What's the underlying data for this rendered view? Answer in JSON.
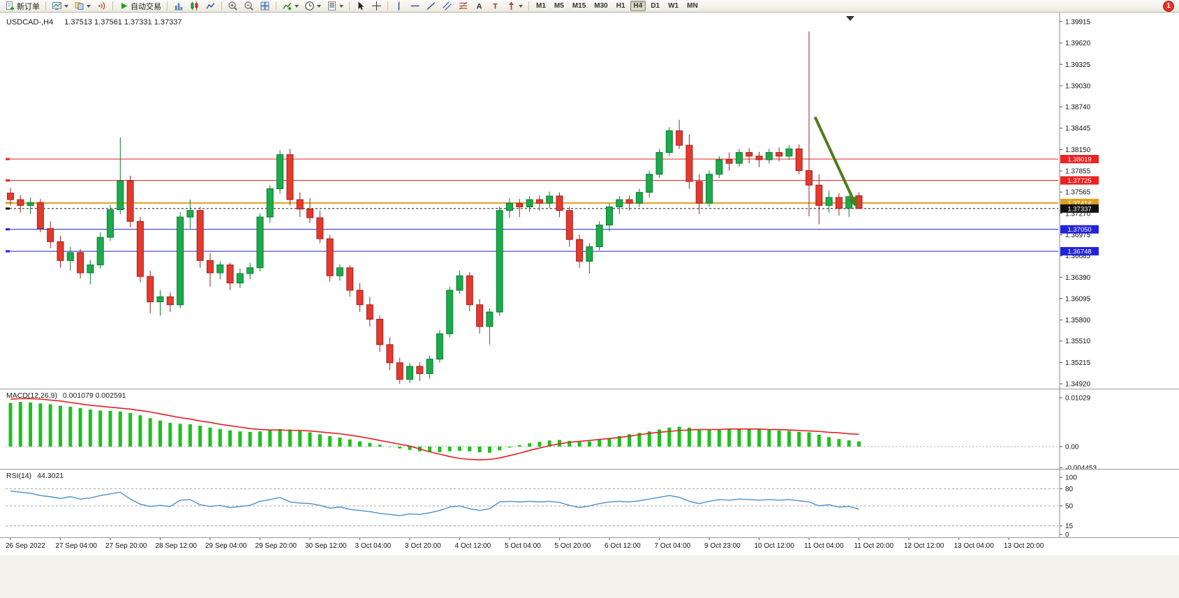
{
  "app": {
    "badge_count": "1"
  },
  "colors": {
    "bull": "#1cab4b",
    "bull_edge": "#0c7a33",
    "bear": "#e23b2e",
    "bear_edge": "#a31f1f",
    "macd_hist": "#1fc01f",
    "macd_signal": "#e02020",
    "rsi_line": "#4d8fd1",
    "arrow": "#4e7d1e",
    "resistance": "#ee2222",
    "pivot": "#e0a020",
    "support": "#2222dd",
    "current": "#111111"
  },
  "toolbar": {
    "groups": [
      {
        "items": [
          {
            "name": "new-order-button",
            "icon": "new-order-icon",
            "label": "新订单",
            "caret": false
          }
        ]
      },
      {
        "items": [
          {
            "name": "charts-button",
            "icon": "charts-icon",
            "caret": true
          },
          {
            "name": "profiles-button",
            "icon": "profiles-icon",
            "caret": true
          },
          {
            "name": "signals-button",
            "icon": "signals-icon",
            "caret": false
          }
        ]
      },
      {
        "items": [
          {
            "name": "autotrading-button",
            "icon": "play-icon",
            "label": "自动交易",
            "caret": false
          }
        ]
      },
      {
        "items": [
          {
            "name": "bar-chart-button",
            "icon": "bar-chart-icon"
          },
          {
            "name": "candlestick-button",
            "icon": "candlestick-icon"
          },
          {
            "name": "line-chart-button",
            "icon": "line-chart-icon"
          }
        ]
      },
      {
        "items": [
          {
            "name": "zoom-in-button",
            "icon": "zoom-in-icon"
          },
          {
            "name": "zoom-out-button",
            "icon": "zoom-out-icon"
          },
          {
            "name": "tile-windows-button",
            "icon": "tile-windows-icon"
          }
        ]
      },
      {
        "items": [
          {
            "name": "indicators-button",
            "icon": "indicators-icon",
            "caret": true
          },
          {
            "name": "periods-button",
            "icon": "periods-icon",
            "caret": true
          },
          {
            "name": "templates-button",
            "icon": "templates-icon",
            "caret": true
          }
        ]
      },
      {
        "items": [
          {
            "name": "cursor-button",
            "icon": "cursor-icon"
          },
          {
            "name": "crosshair-button",
            "icon": "crosshair-icon"
          }
        ]
      },
      {
        "items": [
          {
            "name": "vline-button",
            "icon": "vline-icon"
          },
          {
            "name": "hline-button",
            "icon": "hline-icon"
          },
          {
            "name": "trendline-button",
            "icon": "trendline-icon"
          },
          {
            "name": "channel-button",
            "icon": "channel-icon"
          },
          {
            "name": "fibonacci-button",
            "icon": "fibonacci-icon"
          },
          {
            "name": "text-button",
            "icon": "text-icon"
          },
          {
            "name": "label-button",
            "icon": "label-icon"
          },
          {
            "name": "arrows-button",
            "icon": "arrows-icon",
            "caret": true
          }
        ]
      }
    ],
    "timeframes": [
      {
        "name": "tf-m1",
        "label": "M1"
      },
      {
        "name": "tf-m5",
        "label": "M5"
      },
      {
        "name": "tf-m15",
        "label": "M15"
      },
      {
        "name": "tf-m30",
        "label": "M30"
      },
      {
        "name": "tf-h1",
        "label": "H1"
      },
      {
        "name": "tf-h4",
        "label": "H4",
        "active": true
      },
      {
        "name": "tf-d1",
        "label": "D1"
      },
      {
        "name": "tf-w1",
        "label": "W1"
      },
      {
        "name": "tf-mn",
        "label": "MN"
      }
    ]
  },
  "chart_data": [
    {
      "type": "candlestick",
      "title": "USDCAD-,H4",
      "ohlc_display": "1.37513 1.37561 1.37331 1.37337",
      "timeframe": "H4",
      "ylim": [
        1.3492,
        1.39915
      ],
      "y_axis_labels": [
        "1.39915",
        "1.39620",
        "1.39325",
        "1.39030",
        "1.38740",
        "1.38445",
        "1.38150",
        "1.37855",
        "1.37565",
        "1.37270",
        "1.36975",
        "1.36685",
        "1.36390",
        "1.36095",
        "1.35800",
        "1.35510",
        "1.35215",
        "1.34920"
      ],
      "x_labels": [
        "26 Sep 2022",
        "27 Sep 04:00",
        "27 Sep 20:00",
        "28 Sep 12:00",
        "29 Sep 04:00",
        "29 Sep 20:00",
        "30 Sep 12:00",
        "3 Oct 04:00",
        "3 Oct 20:00",
        "4 Oct 12:00",
        "5 Oct 04:00",
        "5 Oct 20:00",
        "6 Oct 12:00",
        "7 Oct 04:00",
        "9 Oct 23:00",
        "10 Oct 12:00",
        "11 Oct 04:00",
        "11 Oct 20:00",
        "12 Oct 12:00",
        "13 Oct 04:00",
        "13 Oct 20:00"
      ],
      "bars_per_label": 5,
      "ohlc": [
        [
          1.3755,
          1.3762,
          1.3738,
          1.3746
        ],
        [
          1.3746,
          1.3752,
          1.3728,
          1.3738
        ],
        [
          1.3738,
          1.3749,
          1.3726,
          1.3742
        ],
        [
          1.3742,
          1.3747,
          1.3701,
          1.3706
        ],
        [
          1.3706,
          1.3716,
          1.3679,
          1.3688
        ],
        [
          1.3688,
          1.3696,
          1.3652,
          1.3662
        ],
        [
          1.3662,
          1.3681,
          1.3648,
          1.3673
        ],
        [
          1.3673,
          1.3678,
          1.3637,
          1.3645
        ],
        [
          1.3645,
          1.3663,
          1.3629,
          1.3656
        ],
        [
          1.3656,
          1.3701,
          1.3651,
          1.3694
        ],
        [
          1.3694,
          1.3739,
          1.3689,
          1.3732
        ],
        [
          1.3732,
          1.3832,
          1.3726,
          1.3772
        ],
        [
          1.3772,
          1.3779,
          1.3708,
          1.3716
        ],
        [
          1.3716,
          1.3722,
          1.3632,
          1.364
        ],
        [
          1.364,
          1.3648,
          1.3589,
          1.3605
        ],
        [
          1.3605,
          1.3621,
          1.3586,
          1.3612
        ],
        [
          1.3612,
          1.3618,
          1.3591,
          1.3601
        ],
        [
          1.3601,
          1.3729,
          1.3596,
          1.3722
        ],
        [
          1.3722,
          1.3746,
          1.3706,
          1.3731
        ],
        [
          1.3731,
          1.3736,
          1.3652,
          1.3662
        ],
        [
          1.3662,
          1.3672,
          1.3626,
          1.3645
        ],
        [
          1.3645,
          1.3661,
          1.3636,
          1.3656
        ],
        [
          1.3656,
          1.3659,
          1.3621,
          1.3631
        ],
        [
          1.3631,
          1.3651,
          1.3624,
          1.3644
        ],
        [
          1.3644,
          1.3659,
          1.3636,
          1.3652
        ],
        [
          1.3652,
          1.3727,
          1.3647,
          1.3722
        ],
        [
          1.3722,
          1.3766,
          1.3714,
          1.3761
        ],
        [
          1.3761,
          1.3814,
          1.3754,
          1.3808
        ],
        [
          1.3808,
          1.3816,
          1.3738,
          1.3746
        ],
        [
          1.3746,
          1.3756,
          1.3722,
          1.3733
        ],
        [
          1.3733,
          1.3748,
          1.3714,
          1.3721
        ],
        [
          1.3721,
          1.3731,
          1.3686,
          1.3692
        ],
        [
          1.3692,
          1.3697,
          1.3633,
          1.3641
        ],
        [
          1.3641,
          1.3657,
          1.3634,
          1.3652
        ],
        [
          1.3652,
          1.3656,
          1.3612,
          1.3621
        ],
        [
          1.3621,
          1.3631,
          1.3591,
          1.3601
        ],
        [
          1.3601,
          1.3612,
          1.3571,
          1.3581
        ],
        [
          1.3581,
          1.3586,
          1.3536,
          1.3546
        ],
        [
          1.3546,
          1.3556,
          1.3511,
          1.3521
        ],
        [
          1.3521,
          1.3528,
          1.3492,
          1.3498
        ],
        [
          1.3498,
          1.3521,
          1.3493,
          1.3516
        ],
        [
          1.3516,
          1.3522,
          1.3496,
          1.3506
        ],
        [
          1.3506,
          1.3531,
          1.3499,
          1.3526
        ],
        [
          1.3526,
          1.3566,
          1.3521,
          1.3561
        ],
        [
          1.3561,
          1.3626,
          1.3556,
          1.3621
        ],
        [
          1.3621,
          1.3648,
          1.3616,
          1.3641
        ],
        [
          1.3641,
          1.3646,
          1.3592,
          1.3601
        ],
        [
          1.3601,
          1.3609,
          1.3561,
          1.3571
        ],
        [
          1.3571,
          1.3596,
          1.3546,
          1.3591
        ],
        [
          1.3591,
          1.3736,
          1.3586,
          1.3731
        ],
        [
          1.3731,
          1.3748,
          1.3721,
          1.3741
        ],
        [
          1.3741,
          1.3747,
          1.3722,
          1.3736
        ],
        [
          1.3736,
          1.3751,
          1.3729,
          1.3746
        ],
        [
          1.3746,
          1.3752,
          1.3731,
          1.3741
        ],
        [
          1.3741,
          1.3757,
          1.3734,
          1.3751
        ],
        [
          1.3751,
          1.3756,
          1.3722,
          1.3731
        ],
        [
          1.3731,
          1.3736,
          1.3681,
          1.3691
        ],
        [
          1.3691,
          1.3698,
          1.3652,
          1.3661
        ],
        [
          1.3661,
          1.3686,
          1.3644,
          1.3681
        ],
        [
          1.3681,
          1.3716,
          1.3676,
          1.3711
        ],
        [
          1.3711,
          1.3741,
          1.3702,
          1.3736
        ],
        [
          1.3736,
          1.3751,
          1.3726,
          1.3746
        ],
        [
          1.3746,
          1.3752,
          1.3731,
          1.3741
        ],
        [
          1.3741,
          1.3761,
          1.3736,
          1.3756
        ],
        [
          1.3756,
          1.3786,
          1.3749,
          1.3781
        ],
        [
          1.3781,
          1.3816,
          1.3776,
          1.3811
        ],
        [
          1.3811,
          1.3846,
          1.3806,
          1.3841
        ],
        [
          1.3841,
          1.3856,
          1.3816,
          1.3821
        ],
        [
          1.3821,
          1.3836,
          1.3761,
          1.3771
        ],
        [
          1.3771,
          1.3781,
          1.3726,
          1.3741
        ],
        [
          1.3741,
          1.3786,
          1.3736,
          1.3781
        ],
        [
          1.3781,
          1.3806,
          1.3776,
          1.3801
        ],
        [
          1.3801,
          1.3811,
          1.3786,
          1.3796
        ],
        [
          1.3796,
          1.3816,
          1.3791,
          1.3811
        ],
        [
          1.3811,
          1.3817,
          1.3796,
          1.3806
        ],
        [
          1.3806,
          1.3812,
          1.3791,
          1.3801
        ],
        [
          1.3801,
          1.3816,
          1.3796,
          1.3811
        ],
        [
          1.3811,
          1.3818,
          1.3799,
          1.3806
        ],
        [
          1.3806,
          1.3821,
          1.3801,
          1.3816
        ],
        [
          1.3816,
          1.3822,
          1.3781,
          1.3786
        ],
        [
          1.3786,
          1.3978,
          1.3723,
          1.3766
        ],
        [
          1.3766,
          1.3781,
          1.3712,
          1.3738
        ],
        [
          1.3738,
          1.3758,
          1.3728,
          1.3749
        ],
        [
          1.3749,
          1.3755,
          1.3724,
          1.3734
        ],
        [
          1.3734,
          1.3752,
          1.3722,
          1.375
        ],
        [
          1.37513,
          1.37561,
          1.37331,
          1.37337
        ]
      ],
      "hlines": [
        {
          "name": "resistance-line-1",
          "text": "1.38019",
          "price": 1.38019,
          "color": "#ee2222",
          "width": 1,
          "dashed": false,
          "role": "resistance"
        },
        {
          "name": "resistance-line-2",
          "text": "1.37725",
          "price": 1.37725,
          "color": "#ee2222",
          "width": 1,
          "dashed": false,
          "role": "resistance"
        },
        {
          "name": "pivot-line",
          "text": "1.37414",
          "price": 1.37414,
          "color": "#e0a020",
          "width": 2,
          "dashed": false,
          "role": "pivot"
        },
        {
          "name": "current-price-line",
          "text": "1.37337",
          "price": 1.37337,
          "color": "#111111",
          "width": 1,
          "dashed": true,
          "role": "current"
        },
        {
          "name": "support-line-1",
          "text": "1.37050",
          "price": 1.3705,
          "color": "#2222dd",
          "width": 1,
          "dashed": false,
          "role": "support"
        },
        {
          "name": "support-line-2",
          "text": "1.36748",
          "price": 1.36748,
          "color": "#2222dd",
          "width": 1,
          "dashed": false,
          "role": "support"
        }
      ],
      "annotations": [
        {
          "type": "arrow",
          "name": "sell-arrow",
          "color": "#4e7d1e",
          "from": {
            "bar": 80.6,
            "price": 1.386
          },
          "to": {
            "bar": 84.7,
            "price": 1.3738
          }
        }
      ]
    },
    {
      "type": "bar",
      "label": "MACD(12,26,9)",
      "display_values": "0.001079 0.002591",
      "y_axis_labels": [
        "0.01029",
        "0.00",
        "-0.004453"
      ],
      "zero_line": true,
      "values": [
        0.0092,
        0.0094,
        0.0093,
        0.0091,
        0.0089,
        0.0086,
        0.0084,
        0.0081,
        0.0078,
        0.0076,
        0.0075,
        0.0074,
        0.0071,
        0.0066,
        0.006,
        0.0055,
        0.005,
        0.0048,
        0.0047,
        0.0044,
        0.004,
        0.0037,
        0.0034,
        0.0032,
        0.0031,
        0.0032,
        0.0034,
        0.0037,
        0.0036,
        0.0033,
        0.003,
        0.0026,
        0.0022,
        0.0019,
        0.0015,
        0.0011,
        0.0008,
        0.0004,
        0.0,
        -0.0004,
        -0.0007,
        -0.001,
        -0.0012,
        -0.0012,
        -0.001,
        -0.0009,
        -0.001,
        -0.0012,
        -0.0013,
        -0.0008,
        -0.0002,
        0.0003,
        0.0007,
        0.001,
        0.0013,
        0.0014,
        0.0012,
        0.001,
        0.0011,
        0.0014,
        0.0018,
        0.0022,
        0.0026,
        0.0029,
        0.0032,
        0.0036,
        0.004,
        0.0042,
        0.004,
        0.0036,
        0.0035,
        0.0036,
        0.0037,
        0.0038,
        0.0037,
        0.0036,
        0.0035,
        0.0034,
        0.0033,
        0.0031,
        0.003,
        0.0025,
        0.002,
        0.0016,
        0.0013,
        0.001079
      ],
      "signal": [
        0.01,
        0.0101,
        0.0101,
        0.01,
        0.0098,
        0.0096,
        0.0093,
        0.009,
        0.0087,
        0.0085,
        0.0083,
        0.0081,
        0.0079,
        0.0076,
        0.0073,
        0.0069,
        0.0065,
        0.0061,
        0.0058,
        0.0054,
        0.0051,
        0.0047,
        0.0044,
        0.0041,
        0.0038,
        0.0036,
        0.0035,
        0.0035,
        0.0034,
        0.0034,
        0.0033,
        0.0031,
        0.0029,
        0.0027,
        0.0024,
        0.0021,
        0.0017,
        0.0013,
        0.0009,
        0.0005,
        0.0001,
        -0.0005,
        -0.0011,
        -0.0016,
        -0.0021,
        -0.0025,
        -0.0027,
        -0.0028,
        -0.0027,
        -0.0024,
        -0.0019,
        -0.0014,
        -0.0008,
        -0.0003,
        0.0002,
        0.0006,
        0.0009,
        0.0011,
        0.0013,
        0.0015,
        0.0017,
        0.0019,
        0.0022,
        0.0025,
        0.0028,
        0.003,
        0.0032,
        0.0034,
        0.0035,
        0.0036,
        0.0036,
        0.0036,
        0.0037,
        0.0037,
        0.0037,
        0.0037,
        0.0036,
        0.0036,
        0.0035,
        0.0034,
        0.0033,
        0.0032,
        0.003,
        0.0029,
        0.0027,
        0.002591
      ]
    },
    {
      "type": "line",
      "label": "RSI(14)",
      "display_values": "44.3021",
      "ylim": [
        0,
        100
      ],
      "levels": [
        80,
        50,
        15
      ],
      "y_axis_labels": [
        "100",
        "80",
        "50",
        "15",
        "0"
      ],
      "values": [
        76,
        74,
        72,
        68,
        66,
        63,
        66,
        62,
        64,
        68,
        71,
        74,
        62,
        53,
        49,
        51,
        49,
        60,
        61,
        52,
        49,
        51,
        47,
        49,
        51,
        58,
        61,
        65,
        57,
        55,
        54,
        51,
        46,
        48,
        44,
        42,
        40,
        37,
        35,
        33,
        36,
        35,
        38,
        42,
        48,
        50,
        45,
        42,
        45,
        57,
        58,
        57,
        58,
        57,
        58,
        56,
        51,
        47,
        50,
        54,
        57,
        58,
        57,
        59,
        62,
        65,
        68,
        65,
        58,
        54,
        58,
        61,
        60,
        62,
        61,
        60,
        61,
        60,
        61,
        59,
        57,
        50,
        52,
        48,
        49,
        44.3021
      ]
    }
  ]
}
